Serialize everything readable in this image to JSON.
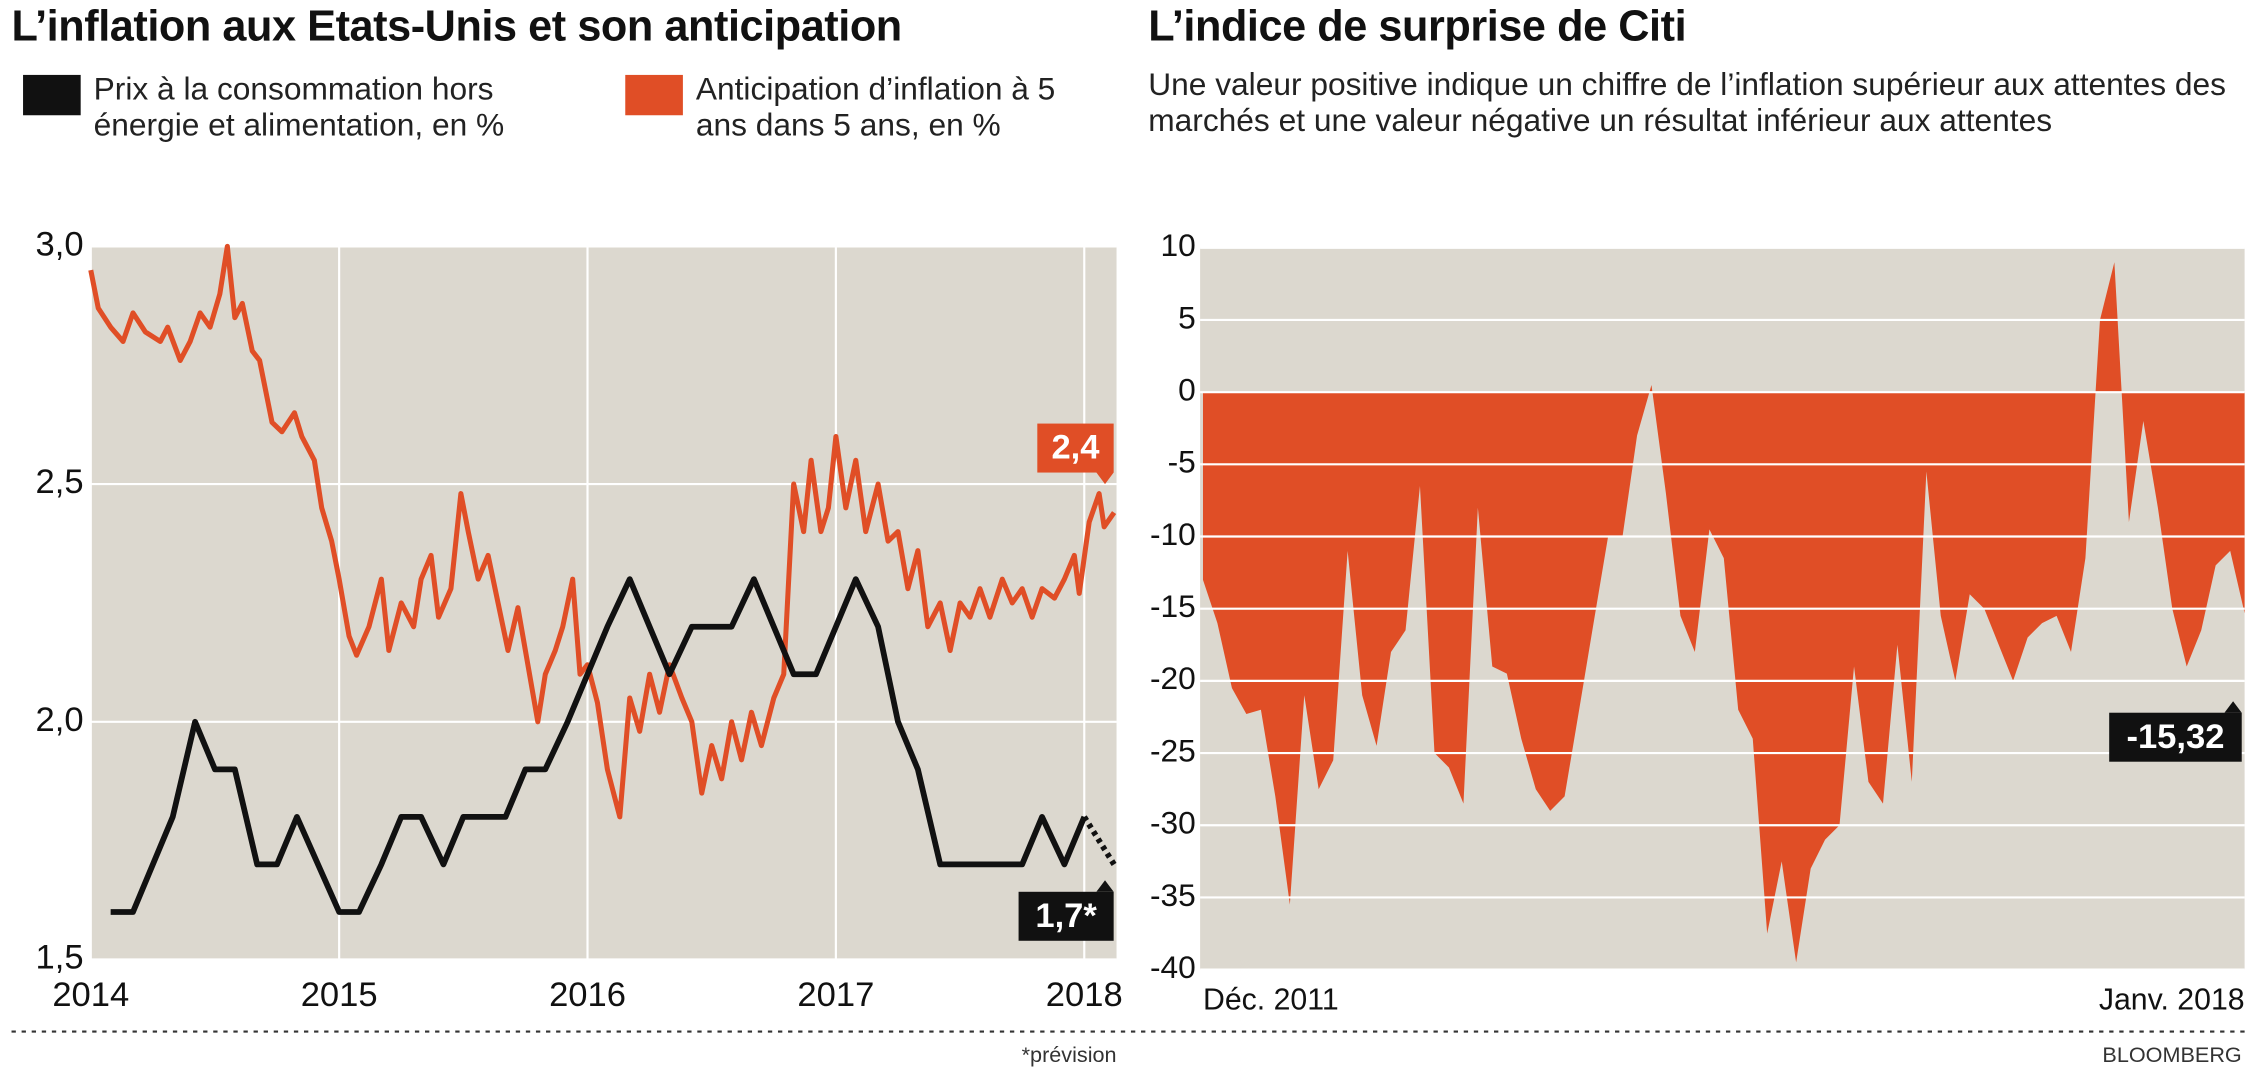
{
  "chart_data": [
    {
      "type": "line",
      "title": "L’inflation aux Etats-Unis et son anticipation",
      "note": "*prévision",
      "xlim": [
        2014,
        2018.13
      ],
      "xticks": [
        2014,
        2015,
        2016,
        2017,
        2018
      ],
      "ylim": [
        1.5,
        3.0
      ],
      "yticks": [
        {
          "value": 3.0,
          "label": "3,0"
        },
        {
          "value": 2.5,
          "label": "2,5"
        },
        {
          "value": 2.0,
          "label": "2,0"
        },
        {
          "value": 1.5,
          "label": "1,5"
        }
      ],
      "grid": true,
      "series": [
        {
          "name": "Prix à la consommation hors énergie et alimentation, en %",
          "color": "#111111",
          "x": [
            2014.08,
            2014.17,
            2014.33,
            2014.42,
            2014.5,
            2014.58,
            2014.67,
            2014.75,
            2014.83,
            2015.0,
            2015.08,
            2015.17,
            2015.25,
            2015.33,
            2015.42,
            2015.5,
            2015.67,
            2015.75,
            2015.83,
            2015.92,
            2016.0,
            2016.08,
            2016.17,
            2016.25,
            2016.33,
            2016.42,
            2016.58,
            2016.67,
            2016.75,
            2016.83,
            2016.92,
            2017.0,
            2017.08,
            2017.17,
            2017.25,
            2017.33,
            2017.42,
            2017.75,
            2017.83,
            2017.92,
            2018.0
          ],
          "values": [
            1.6,
            1.6,
            1.8,
            2.0,
            1.9,
            1.9,
            1.7,
            1.7,
            1.8,
            1.6,
            1.6,
            1.7,
            1.8,
            1.8,
            1.7,
            1.8,
            1.8,
            1.9,
            1.9,
            2.0,
            2.1,
            2.2,
            2.3,
            2.2,
            2.1,
            2.2,
            2.2,
            2.3,
            2.2,
            2.1,
            2.1,
            2.2,
            2.3,
            2.2,
            2.0,
            1.9,
            1.7,
            1.7,
            1.8,
            1.7,
            1.8
          ]
        },
        {
          "name": "Anticipation d’inflation à 5 ans dans 5 ans, en %",
          "color": "#e04e26",
          "x": [
            2014.0,
            2014.03,
            2014.08,
            2014.13,
            2014.17,
            2014.22,
            2014.28,
            2014.31,
            2014.36,
            2014.4,
            2014.44,
            2014.48,
            2014.52,
            2014.55,
            2014.58,
            2014.61,
            2014.65,
            2014.68,
            2014.73,
            2014.77,
            2014.82,
            2014.85,
            2014.9,
            2014.93,
            2014.97,
            2015.0,
            2015.04,
            2015.07,
            2015.12,
            2015.17,
            2015.2,
            2015.25,
            2015.3,
            2015.33,
            2015.37,
            2015.4,
            2015.45,
            2015.49,
            2015.52,
            2015.56,
            2015.6,
            2015.64,
            2015.68,
            2015.72,
            2015.76,
            2015.8,
            2015.83,
            2015.87,
            2015.9,
            2015.94,
            2015.97,
            2016.0,
            2016.04,
            2016.08,
            2016.13,
            2016.17,
            2016.21,
            2016.25,
            2016.29,
            2016.33,
            2016.38,
            2016.42,
            2016.46,
            2016.5,
            2016.54,
            2016.58,
            2016.62,
            2016.66,
            2016.7,
            2016.75,
            2016.79,
            2016.83,
            2016.87,
            2016.9,
            2016.94,
            2016.97,
            2017.0,
            2017.04,
            2017.08,
            2017.12,
            2017.17,
            2017.21,
            2017.25,
            2017.29,
            2017.33,
            2017.37,
            2017.42,
            2017.46,
            2017.5,
            2017.54,
            2017.58,
            2017.62,
            2017.67,
            2017.71,
            2017.75,
            2017.79,
            2017.83,
            2017.88,
            2017.92,
            2017.96,
            2017.98,
            2018.02,
            2018.06,
            2018.08,
            2018.12
          ],
          "values": [
            2.95,
            2.87,
            2.83,
            2.8,
            2.86,
            2.82,
            2.8,
            2.83,
            2.76,
            2.8,
            2.86,
            2.83,
            2.9,
            3.0,
            2.85,
            2.88,
            2.78,
            2.76,
            2.63,
            2.61,
            2.65,
            2.6,
            2.55,
            2.45,
            2.38,
            2.3,
            2.18,
            2.14,
            2.2,
            2.3,
            2.15,
            2.25,
            2.2,
            2.3,
            2.35,
            2.22,
            2.28,
            2.48,
            2.4,
            2.3,
            2.35,
            2.25,
            2.15,
            2.24,
            2.12,
            2.0,
            2.1,
            2.15,
            2.2,
            2.3,
            2.1,
            2.12,
            2.04,
            1.9,
            1.8,
            2.05,
            1.98,
            2.1,
            2.02,
            2.12,
            2.05,
            2.0,
            1.85,
            1.95,
            1.88,
            2.0,
            1.92,
            2.02,
            1.95,
            2.05,
            2.1,
            2.5,
            2.4,
            2.55,
            2.4,
            2.45,
            2.6,
            2.45,
            2.55,
            2.4,
            2.5,
            2.38,
            2.4,
            2.28,
            2.36,
            2.2,
            2.25,
            2.15,
            2.25,
            2.22,
            2.28,
            2.22,
            2.3,
            2.25,
            2.28,
            2.22,
            2.28,
            2.26,
            2.3,
            2.35,
            2.27,
            2.42,
            2.48,
            2.41,
            2.44
          ]
        }
      ],
      "forecast": {
        "x": [
          2018.0,
          2018.12
        ],
        "values": [
          1.8,
          1.7
        ],
        "color": "#111111"
      },
      "annotations": [
        {
          "label": "2,4",
          "value": 2.4,
          "color": "#e04e26"
        },
        {
          "label": "1,7*",
          "value": 1.7,
          "color": "#111111"
        }
      ]
    },
    {
      "type": "area",
      "title": "L’indice de surprise de Citi",
      "subtitle": "Une valeur positive indique un chiffre de l’inflation supérieur aux attentes des marchés et une valeur négative un résultat inférieur aux attentes",
      "source": "BLOOMBERG",
      "ylim": [
        -40,
        10
      ],
      "yticks": [
        10,
        5,
        0,
        -5,
        -10,
        -15,
        -20,
        -25,
        -30,
        -35,
        -40
      ],
      "grid": true,
      "color": "#e04e26",
      "categories": [
        "Déc. 2011",
        null,
        null,
        null,
        null,
        null,
        null,
        null,
        null,
        null,
        null,
        null,
        null,
        null,
        null,
        null,
        null,
        null,
        null,
        null,
        null,
        null,
        null,
        null,
        null,
        null,
        null,
        null,
        null,
        null,
        null,
        null,
        null,
        null,
        null,
        null,
        null,
        null,
        null,
        null,
        null,
        null,
        null,
        null,
        null,
        null,
        null,
        null,
        null,
        null,
        null,
        null,
        null,
        null,
        null,
        null,
        null,
        null,
        null,
        null,
        null,
        null,
        null,
        null,
        null,
        null,
        null,
        null,
        null,
        null,
        null,
        null,
        "Janv. 2018"
      ],
      "values": [
        -13,
        -16,
        -20.5,
        -22.3,
        -22,
        -28,
        -35.5,
        -21,
        -27.5,
        -25.5,
        -11,
        -21,
        -24.5,
        -18,
        -16.5,
        -6.5,
        -25,
        -26,
        -28.5,
        -8,
        -19,
        -19.5,
        -24,
        -27.5,
        -29,
        -28,
        -22,
        -16,
        -10,
        -10,
        -3,
        0.5,
        -7,
        -15.5,
        -18,
        -9.5,
        -11.5,
        -22,
        -24,
        -37.5,
        -32.5,
        -39.5,
        -33,
        -31,
        -30,
        -19,
        -27,
        -28.5,
        -17.5,
        -27,
        -5.5,
        -15.5,
        -20,
        -14,
        -15,
        -17.5,
        -20,
        -17,
        -16,
        -15.5,
        -18,
        -11.5,
        5,
        9,
        -9,
        -2,
        -8,
        -15,
        -19,
        -16.5,
        -12,
        -11,
        -15.32
      ],
      "annotations": [
        {
          "label": "-15,32",
          "value": -15.32,
          "color": "#111111"
        }
      ]
    }
  ]
}
